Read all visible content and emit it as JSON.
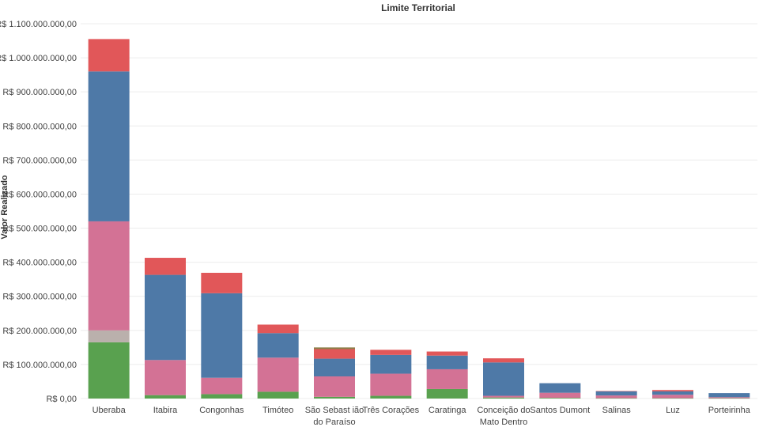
{
  "chart_data": {
    "type": "bar",
    "stacked": true,
    "title": "Limite Territorial",
    "xlabel": "",
    "ylabel": "Valor Realizado",
    "ylim": [
      0,
      1100000000
    ],
    "yticks": [
      0,
      100000000,
      200000000,
      300000000,
      400000000,
      500000000,
      600000000,
      700000000,
      800000000,
      900000000,
      1000000000,
      1100000000
    ],
    "ytick_labels": [
      "R$ 0,00",
      "R$ 100.000.000,00",
      "R$ 200.000.000,00",
      "R$ 300.000.000,00",
      "R$ 400.000.000,00",
      "R$ 500.000.000,00",
      "R$ 600.000.000,00",
      "R$ 700.000.000,00",
      "R$ 800.000.000,00",
      "R$ 900.000.000,00",
      "R$ 1.000.000.000,00",
      "R$ 1.100.000.000,00"
    ],
    "categories": [
      "Uberaba",
      "Itabira",
      "Congonhas",
      "Timóteo",
      "São Sebastião do Paraíso",
      "Três Corações",
      "Caratinga",
      "Conceição do Mato Dentro",
      "Santos Dumont",
      "Salinas",
      "Luz",
      "Porteirinha"
    ],
    "category_lines": [
      [
        "Uberaba"
      ],
      [
        "Itabira"
      ],
      [
        "Congonhas"
      ],
      [
        "Timóteo"
      ],
      [
        "São Sebast ião",
        "do Paraíso"
      ],
      [
        "Três Corações"
      ],
      [
        "Caratinga"
      ],
      [
        "Conceição do",
        "Mato Dentro"
      ],
      [
        "Santos Dumont"
      ],
      [
        "Salinas"
      ],
      [
        "Luz"
      ],
      [
        "Porteirinha"
      ]
    ],
    "series": [
      {
        "name": "green",
        "color": "#59a14f",
        "values": [
          165000000,
          10000000,
          13000000,
          20000000,
          5000000,
          8000000,
          28000000,
          3000000,
          2000000,
          1000000,
          1000000,
          1000000
        ]
      },
      {
        "name": "gray",
        "color": "#bab0ac",
        "values": [
          35000000,
          0,
          0,
          0,
          0,
          0,
          0,
          0,
          0,
          0,
          0,
          0
        ]
      },
      {
        "name": "pink",
        "color": "#d37295",
        "values": [
          320000000,
          103000000,
          48000000,
          100000000,
          60000000,
          65000000,
          58000000,
          5000000,
          15000000,
          8000000,
          10000000,
          3000000
        ]
      },
      {
        "name": "blue",
        "color": "#4e79a7",
        "values": [
          440000000,
          250000000,
          248000000,
          72000000,
          52000000,
          55000000,
          40000000,
          98000000,
          28000000,
          12000000,
          10000000,
          12000000
        ]
      },
      {
        "name": "red",
        "color": "#e15759",
        "values": [
          95000000,
          50000000,
          60000000,
          25000000,
          28000000,
          15000000,
          12000000,
          12000000,
          0,
          1000000,
          4000000,
          0
        ]
      },
      {
        "name": "olive",
        "color": "#8c7f4a",
        "values": [
          0,
          0,
          0,
          0,
          5000000,
          0,
          0,
          0,
          0,
          0,
          0,
          0
        ]
      }
    ]
  }
}
